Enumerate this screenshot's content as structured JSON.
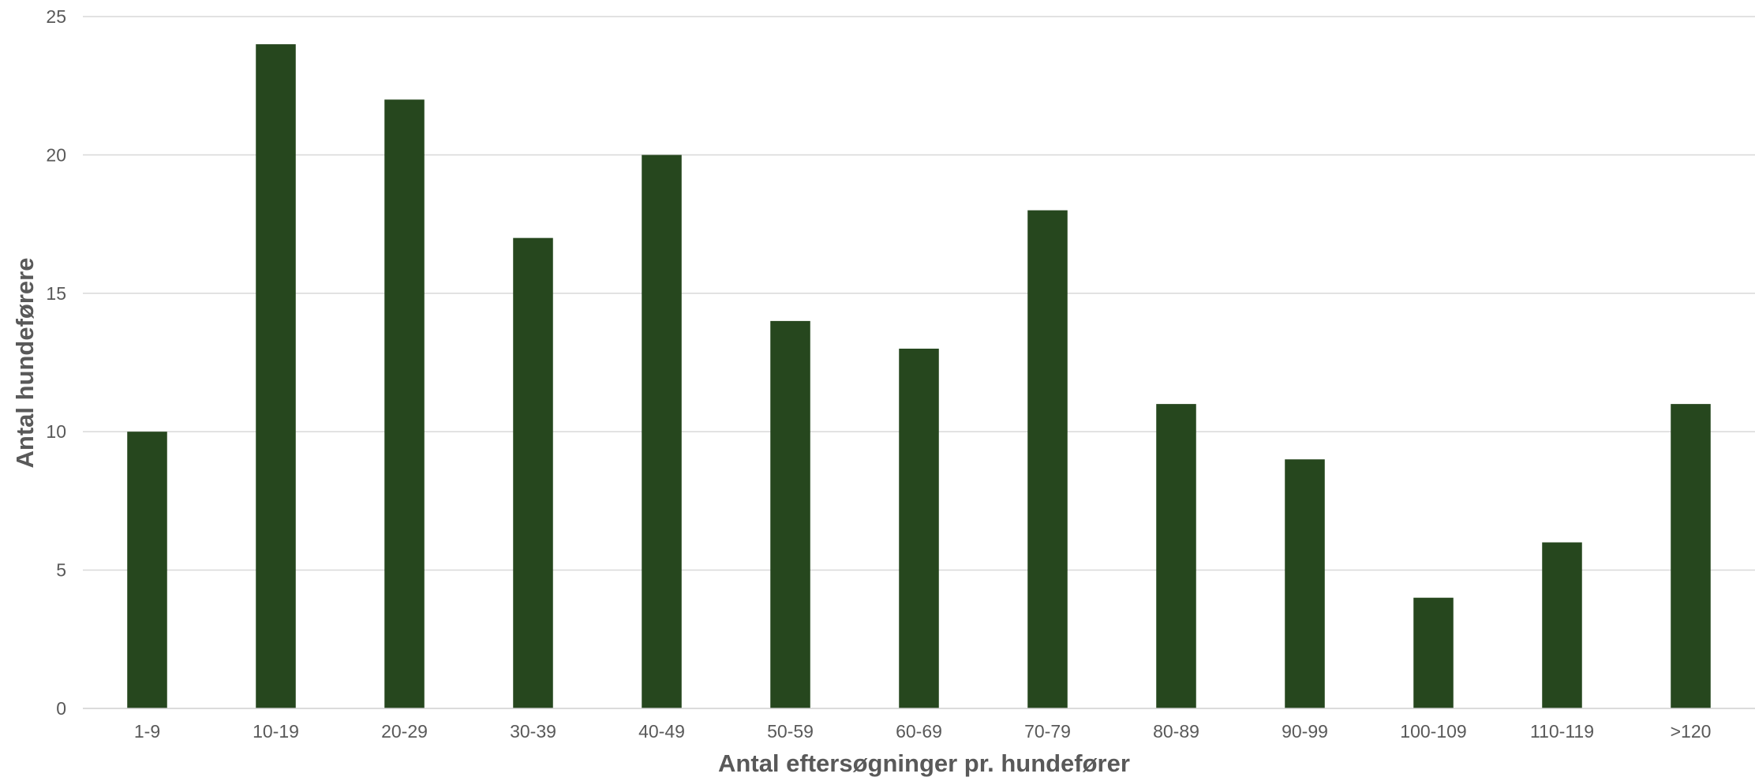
{
  "chart_data": {
    "type": "bar",
    "title": "",
    "xlabel": "Antal eftersøgninger pr. hundefører",
    "ylabel": "Antal hundeførere",
    "categories": [
      "1-9",
      "10-19",
      "20-29",
      "30-39",
      "40-49",
      "50-59",
      "60-69",
      "70-79",
      "80-89",
      "90-99",
      "100-109",
      "110-119",
      ">120"
    ],
    "values": [
      10,
      24,
      22,
      17,
      20,
      14,
      13,
      18,
      11,
      9,
      4,
      6,
      11
    ],
    "ylim": [
      0,
      25
    ],
    "yticks": [
      "0",
      "5",
      "10",
      "15",
      "20",
      "25"
    ],
    "grid": true,
    "legend": "none",
    "bar_color": "#26471e"
  }
}
